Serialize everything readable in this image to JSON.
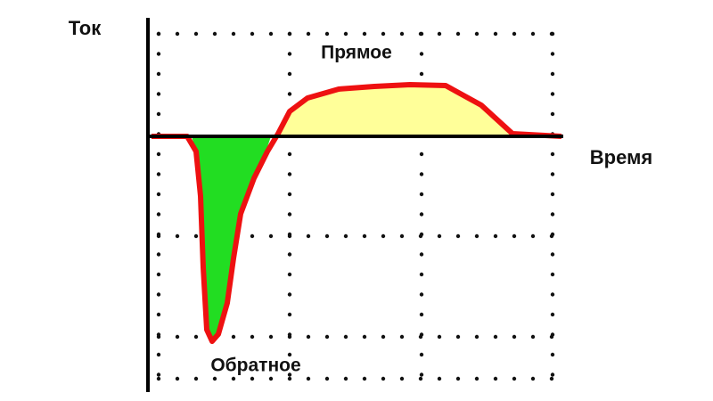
{
  "y_axis_label": "Ток",
  "x_axis_label": "Время",
  "forward_label": "Прямое",
  "reverse_label": "Обратное"
}
